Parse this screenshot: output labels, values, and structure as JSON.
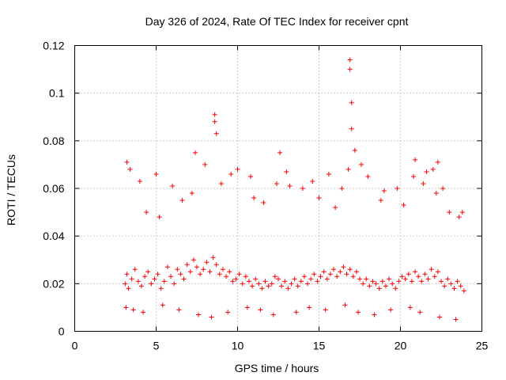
{
  "chart_data": {
    "type": "scatter",
    "title": "Day 326 of 2024, Rate Of TEC Index for receiver cpnt",
    "xlabel": "GPS time / hours",
    "ylabel": "ROTI / TECUs",
    "xlim": [
      0,
      25
    ],
    "ylim": [
      0,
      0.12
    ],
    "x_ticks": [
      0,
      5,
      10,
      15,
      20,
      25
    ],
    "x_tick_labels": [
      "0",
      "5",
      "10",
      "15",
      "20",
      "25"
    ],
    "y_ticks": [
      0,
      0.02,
      0.04,
      0.06,
      0.08,
      0.1,
      0.12
    ],
    "y_tick_labels": [
      "0",
      "0.02",
      "0.04",
      "0.06",
      "0.08",
      "0.1",
      "0.12"
    ],
    "grid": true,
    "marker": "+",
    "color": "#ff0000",
    "series": [
      {
        "name": "ROTI",
        "x": [
          3.1,
          3.2,
          3.3,
          3.5,
          3.7,
          3.9,
          4.1,
          4.3,
          4.5,
          4.7,
          4.9,
          5.1,
          5.3,
          5.5,
          5.7,
          5.9,
          6.1,
          6.3,
          6.5,
          6.7,
          6.9,
          7.1,
          7.3,
          7.5,
          7.7,
          7.9,
          8.1,
          8.3,
          8.5,
          8.7,
          8.9,
          9.1,
          9.3,
          9.5,
          9.7,
          9.9,
          10.1,
          10.3,
          10.5,
          10.7,
          10.9,
          11.1,
          11.3,
          11.5,
          11.7,
          11.9,
          12.1,
          12.3,
          12.5,
          12.7,
          12.9,
          13.1,
          13.3,
          13.5,
          13.7,
          13.9,
          14.1,
          14.3,
          14.5,
          14.7,
          14.9,
          15.1,
          15.3,
          15.5,
          15.7,
          15.9,
          16.1,
          16.3,
          16.5,
          16.7,
          16.9,
          17.1,
          17.3,
          17.5,
          17.7,
          17.9,
          18.1,
          18.3,
          18.5,
          18.7,
          18.9,
          19.1,
          19.3,
          19.5,
          19.7,
          19.9,
          20.1,
          20.3,
          20.5,
          20.7,
          20.9,
          21.1,
          21.3,
          21.5,
          21.7,
          21.9,
          22.1,
          22.3,
          22.5,
          22.7,
          22.9,
          23.1,
          23.3,
          23.5,
          23.7,
          23.9,
          3.2,
          3.4,
          4.0,
          4.4,
          5.0,
          5.2,
          6.0,
          6.6,
          7.2,
          7.4,
          8.0,
          8.6,
          8.6,
          8.7,
          9.0,
          9.6,
          10.0,
          10.8,
          11.0,
          11.6,
          12.4,
          12.6,
          13.0,
          13.2,
          14.0,
          14.6,
          15.0,
          15.6,
          16.0,
          16.4,
          16.8,
          16.9,
          16.9,
          17.0,
          17.0,
          17.2,
          17.6,
          18.0,
          18.8,
          19.0,
          19.8,
          20.2,
          20.8,
          20.9,
          21.4,
          21.6,
          22.0,
          22.2,
          22.3,
          22.6,
          23.0,
          23.6,
          23.8,
          3.15,
          3.6,
          4.2,
          5.4,
          6.4,
          7.6,
          8.4,
          9.4,
          10.6,
          11.4,
          12.2,
          13.6,
          14.4,
          15.4,
          16.6,
          17.4,
          18.4,
          19.4,
          20.6,
          21.2,
          22.4,
          23.4
        ],
        "y": [
          0.02,
          0.024,
          0.018,
          0.022,
          0.026,
          0.021,
          0.019,
          0.023,
          0.025,
          0.02,
          0.022,
          0.024,
          0.018,
          0.021,
          0.027,
          0.023,
          0.02,
          0.026,
          0.024,
          0.022,
          0.028,
          0.025,
          0.03,
          0.027,
          0.024,
          0.026,
          0.029,
          0.025,
          0.031,
          0.028,
          0.024,
          0.026,
          0.023,
          0.025,
          0.021,
          0.022,
          0.024,
          0.02,
          0.023,
          0.021,
          0.019,
          0.022,
          0.02,
          0.018,
          0.021,
          0.019,
          0.02,
          0.023,
          0.022,
          0.019,
          0.021,
          0.018,
          0.02,
          0.022,
          0.019,
          0.021,
          0.023,
          0.02,
          0.022,
          0.024,
          0.021,
          0.023,
          0.025,
          0.022,
          0.024,
          0.026,
          0.023,
          0.025,
          0.027,
          0.024,
          0.026,
          0.023,
          0.025,
          0.022,
          0.02,
          0.022,
          0.019,
          0.021,
          0.02,
          0.018,
          0.021,
          0.019,
          0.022,
          0.02,
          0.018,
          0.021,
          0.023,
          0.022,
          0.024,
          0.021,
          0.025,
          0.023,
          0.021,
          0.024,
          0.022,
          0.026,
          0.023,
          0.025,
          0.021,
          0.019,
          0.022,
          0.02,
          0.018,
          0.021,
          0.019,
          0.017,
          0.071,
          0.068,
          0.063,
          0.05,
          0.066,
          0.048,
          0.061,
          0.055,
          0.058,
          0.075,
          0.07,
          0.091,
          0.088,
          0.083,
          0.062,
          0.066,
          0.068,
          0.065,
          0.056,
          0.054,
          0.062,
          0.075,
          0.067,
          0.061,
          0.06,
          0.063,
          0.056,
          0.066,
          0.052,
          0.06,
          0.068,
          0.114,
          0.11,
          0.096,
          0.085,
          0.076,
          0.07,
          0.065,
          0.055,
          0.059,
          0.06,
          0.053,
          0.065,
          0.072,
          0.062,
          0.067,
          0.068,
          0.058,
          0.071,
          0.06,
          0.05,
          0.048,
          0.05,
          0.01,
          0.009,
          0.008,
          0.011,
          0.009,
          0.007,
          0.006,
          0.008,
          0.01,
          0.009,
          0.007,
          0.008,
          0.01,
          0.009,
          0.011,
          0.008,
          0.007,
          0.009,
          0.01,
          0.008,
          0.006,
          0.005
        ]
      }
    ]
  }
}
